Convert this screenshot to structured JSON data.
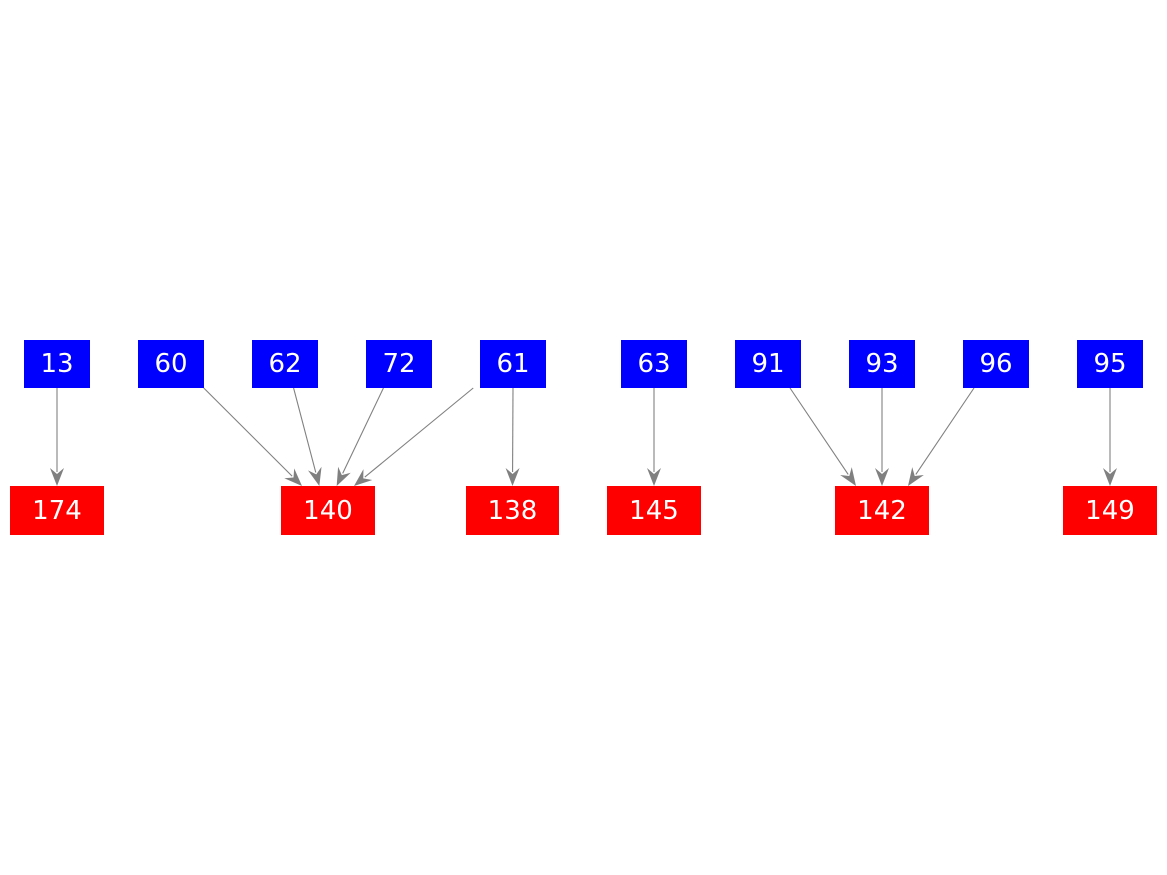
{
  "colors": {
    "source": "#0000ff",
    "target": "#ff0000",
    "edge": "#808080",
    "label": "#ffffff"
  },
  "nodes": [
    {
      "id": "13",
      "label": "13",
      "type": "source"
    },
    {
      "id": "60",
      "label": "60",
      "type": "source"
    },
    {
      "id": "62",
      "label": "62",
      "type": "source"
    },
    {
      "id": "72",
      "label": "72",
      "type": "source"
    },
    {
      "id": "61",
      "label": "61",
      "type": "source"
    },
    {
      "id": "63",
      "label": "63",
      "type": "source"
    },
    {
      "id": "91",
      "label": "91",
      "type": "source"
    },
    {
      "id": "93",
      "label": "93",
      "type": "source"
    },
    {
      "id": "96",
      "label": "96",
      "type": "source"
    },
    {
      "id": "95",
      "label": "95",
      "type": "source"
    },
    {
      "id": "174",
      "label": "174",
      "type": "target"
    },
    {
      "id": "140",
      "label": "140",
      "type": "target"
    },
    {
      "id": "138",
      "label": "138",
      "type": "target"
    },
    {
      "id": "145",
      "label": "145",
      "type": "target"
    },
    {
      "id": "142",
      "label": "142",
      "type": "target"
    },
    {
      "id": "149",
      "label": "149",
      "type": "target"
    }
  ],
  "edges": [
    {
      "from": "13",
      "to": "174"
    },
    {
      "from": "60",
      "to": "140"
    },
    {
      "from": "62",
      "to": "140"
    },
    {
      "from": "72",
      "to": "140"
    },
    {
      "from": "61",
      "to": "140"
    },
    {
      "from": "61",
      "to": "138"
    },
    {
      "from": "63",
      "to": "145"
    },
    {
      "from": "91",
      "to": "142"
    },
    {
      "from": "93",
      "to": "142"
    },
    {
      "from": "96",
      "to": "142"
    },
    {
      "from": "95",
      "to": "149"
    }
  ]
}
